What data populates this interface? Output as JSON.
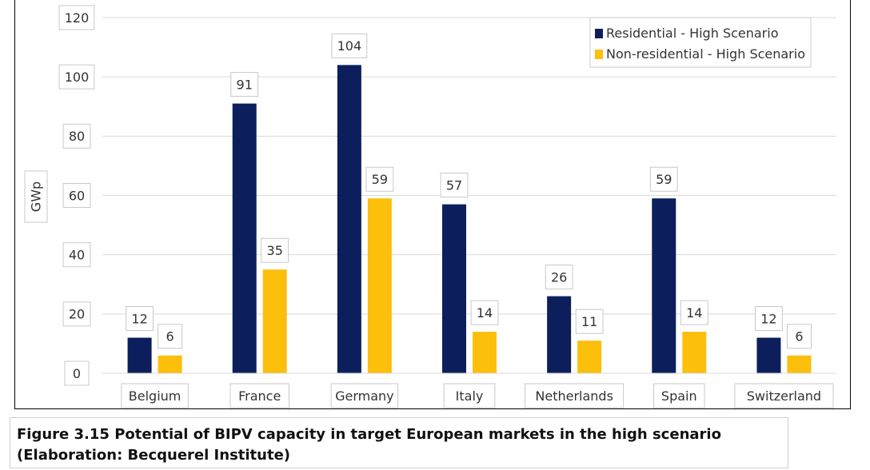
{
  "chart_data": {
    "type": "bar",
    "categories": [
      "Belgium",
      "France",
      "Germany",
      "Italy",
      "Netherlands",
      "Spain",
      "Switzerland"
    ],
    "series": [
      {
        "name": "Residential - High Scenario",
        "color": "#0c1f5c",
        "values": [
          12,
          91,
          104,
          57,
          26,
          59,
          12
        ]
      },
      {
        "name": "Non-residential - High Scenario",
        "color": "#fbbf0c",
        "values": [
          6,
          35,
          59,
          14,
          11,
          14,
          6
        ]
      }
    ],
    "ylabel": "GWp",
    "xlabel": "",
    "ylim": [
      0,
      120
    ],
    "yticks": [
      0,
      20,
      40,
      60,
      80,
      100,
      120
    ],
    "grid": true,
    "legend": "top-right"
  },
  "caption": "Figure 3.15 Potential of BIPV capacity in target European markets in the high scenario (Elaboration: Becquerel Institute)"
}
